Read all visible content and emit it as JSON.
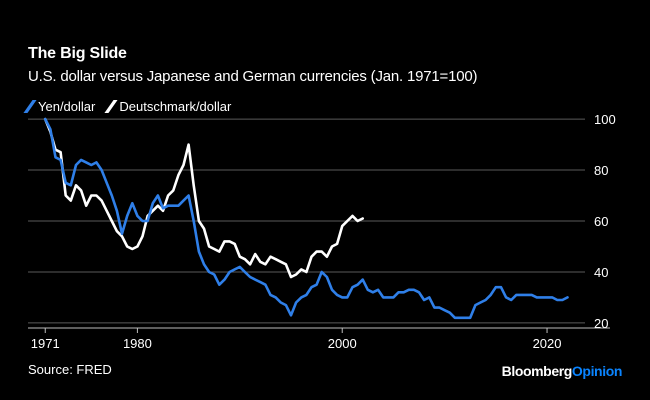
{
  "chart_data": {
    "type": "line",
    "title": "The Big Slide",
    "subtitle": "U.S. dollar versus Japanese and German currencies (Jan. 1971=100)",
    "xlabel": "",
    "ylabel": "",
    "xlim": [
      1970,
      2024
    ],
    "ylim": [
      18,
      102
    ],
    "x_ticks": [
      1971,
      1980,
      2000,
      2020
    ],
    "x_tick_labels": [
      "1971",
      "1980",
      "2000",
      "2020"
    ],
    "y_ticks": [
      20,
      40,
      60,
      80,
      100
    ],
    "y_tick_labels": [
      "20",
      "40",
      "60",
      "80",
      "100"
    ],
    "grid": "horizontal",
    "series": [
      {
        "name": "Yen/dollar",
        "color": "#2f7fe8",
        "x": [
          1971,
          1971.5,
          1972,
          1972.5,
          1973,
          1973.5,
          1974,
          1974.5,
          1975,
          1975.5,
          1976,
          1976.5,
          1977,
          1977.5,
          1978,
          1978.5,
          1979,
          1979.5,
          1980,
          1980.5,
          1981,
          1981.5,
          1982,
          1982.5,
          1983,
          1983.5,
          1984,
          1984.5,
          1985,
          1985.5,
          1986,
          1986.5,
          1987,
          1987.5,
          1988,
          1988.5,
          1989,
          1989.5,
          1990,
          1990.5,
          1991,
          1991.5,
          1992,
          1992.5,
          1993,
          1993.5,
          1994,
          1994.5,
          1995,
          1995.5,
          1996,
          1996.5,
          1997,
          1997.5,
          1998,
          1998.5,
          1999,
          1999.5,
          2000,
          2000.5,
          2001,
          2001.5,
          2002,
          2002.5,
          2003,
          2003.5,
          2004,
          2004.5,
          2005,
          2005.5,
          2006,
          2006.5,
          2007,
          2007.5,
          2008,
          2008.5,
          2009,
          2009.5,
          2010,
          2010.5,
          2011,
          2011.5,
          2012,
          2012.5,
          2013,
          2013.5,
          2014,
          2014.5,
          2015,
          2015.5,
          2016,
          2016.5,
          2017,
          2017.5,
          2018,
          2018.5,
          2019,
          2019.5,
          2020,
          2020.5,
          2021,
          2021.5,
          2022
        ],
        "values": [
          100,
          96,
          85,
          84,
          75,
          74,
          82,
          84,
          83,
          82,
          83,
          80,
          75,
          70,
          64,
          55,
          62,
          67,
          62,
          60,
          60,
          67,
          70,
          65,
          66,
          66,
          66,
          68,
          70,
          60,
          48,
          43,
          40,
          39,
          35,
          37,
          40,
          41,
          42,
          40,
          38,
          37,
          36,
          35,
          31,
          30,
          28,
          27,
          23,
          28,
          30,
          31,
          34,
          35,
          40,
          38,
          33,
          31,
          30,
          30,
          34,
          35,
          37,
          33,
          32,
          33,
          30,
          30,
          30,
          32,
          32,
          33,
          33,
          32,
          29,
          30,
          26,
          26,
          25,
          24,
          22,
          22,
          22,
          22,
          27,
          28,
          29,
          31,
          34,
          34,
          30,
          29,
          31,
          31,
          31,
          31,
          30,
          30,
          30,
          30,
          29,
          29,
          30
        ]
      },
      {
        "name": "Deutschmark/dollar",
        "color": "#ffffff",
        "x": [
          1971,
          1971.5,
          1972,
          1972.5,
          1973,
          1973.5,
          1974,
          1974.5,
          1975,
          1975.5,
          1976,
          1976.5,
          1977,
          1977.5,
          1978,
          1978.5,
          1979,
          1979.5,
          1980,
          1980.5,
          1981,
          1981.5,
          1982,
          1982.5,
          1983,
          1983.5,
          1984,
          1984.5,
          1985,
          1985.5,
          1986,
          1986.5,
          1987,
          1987.5,
          1988,
          1988.5,
          1989,
          1989.5,
          1990,
          1990.5,
          1991,
          1991.5,
          1992,
          1992.5,
          1993,
          1993.5,
          1994,
          1994.5,
          1995,
          1995.5,
          1996,
          1996.5,
          1997,
          1997.5,
          1998,
          1998.5,
          1999,
          1999.5,
          2000,
          2000.5,
          2001,
          2001.5,
          2002
        ],
        "values": [
          100,
          95,
          88,
          87,
          70,
          68,
          74,
          72,
          66,
          70,
          70,
          68,
          64,
          60,
          56,
          54,
          50,
          49,
          50,
          54,
          62,
          64,
          66,
          64,
          70,
          72,
          78,
          82,
          90,
          74,
          60,
          57,
          50,
          49,
          48,
          52,
          52,
          51,
          46,
          45,
          43,
          47,
          44,
          43,
          46,
          45,
          44,
          43,
          38,
          39,
          41,
          40,
          46,
          48,
          48,
          46,
          50,
          51,
          58,
          60,
          62,
          60,
          61
        ]
      }
    ]
  },
  "legend": {
    "items": [
      {
        "label": "Yen/dollar",
        "color": "#2f7fe8"
      },
      {
        "label": "Deutschmark/dollar",
        "color": "#ffffff"
      }
    ]
  },
  "source": "Source: FRED",
  "brand": {
    "part1": "Bloomberg",
    "part2": "Opinion",
    "accent": "#0a84ff"
  }
}
